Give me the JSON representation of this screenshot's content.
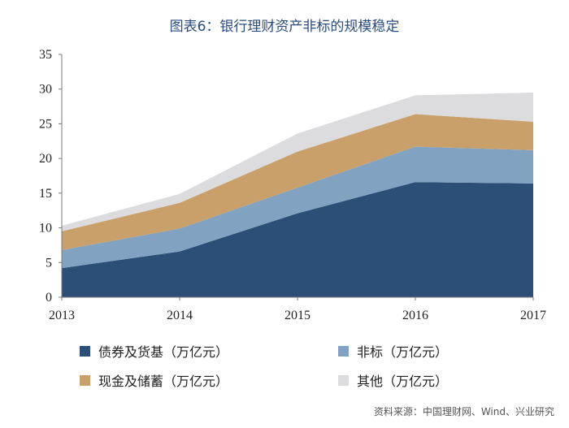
{
  "chart_data": {
    "type": "area",
    "stacked": true,
    "title": "图表6：银行理财资产非标的规模稳定",
    "xlabel": "",
    "ylabel": "",
    "x": [
      "2013",
      "2014",
      "2015",
      "2016",
      "2017"
    ],
    "ylim": [
      0,
      35
    ],
    "yticks": [
      "0",
      "5",
      "10",
      "15",
      "20",
      "25",
      "30",
      "35"
    ],
    "grid": false,
    "legend_position": "bottom",
    "series": [
      {
        "name": "债券及货基（万亿元）",
        "values": [
          4.2,
          6.6,
          12.1,
          16.6,
          16.4
        ],
        "color": "#2c4f77"
      },
      {
        "name": "非标（万亿元）",
        "values": [
          2.6,
          3.3,
          3.7,
          5.1,
          4.8
        ],
        "color": "#81a2c0"
      },
      {
        "name": "现金及储蓄（万亿元）",
        "values": [
          2.7,
          3.7,
          5.2,
          4.7,
          4.1
        ],
        "color": "#c9a06a"
      },
      {
        "name": "其他（万亿元）",
        "values": [
          0.8,
          1.3,
          2.6,
          2.7,
          4.2
        ],
        "color": "#dcdcdf"
      }
    ],
    "source": "资料来源：中国理财网、Wind、兴业研究"
  }
}
